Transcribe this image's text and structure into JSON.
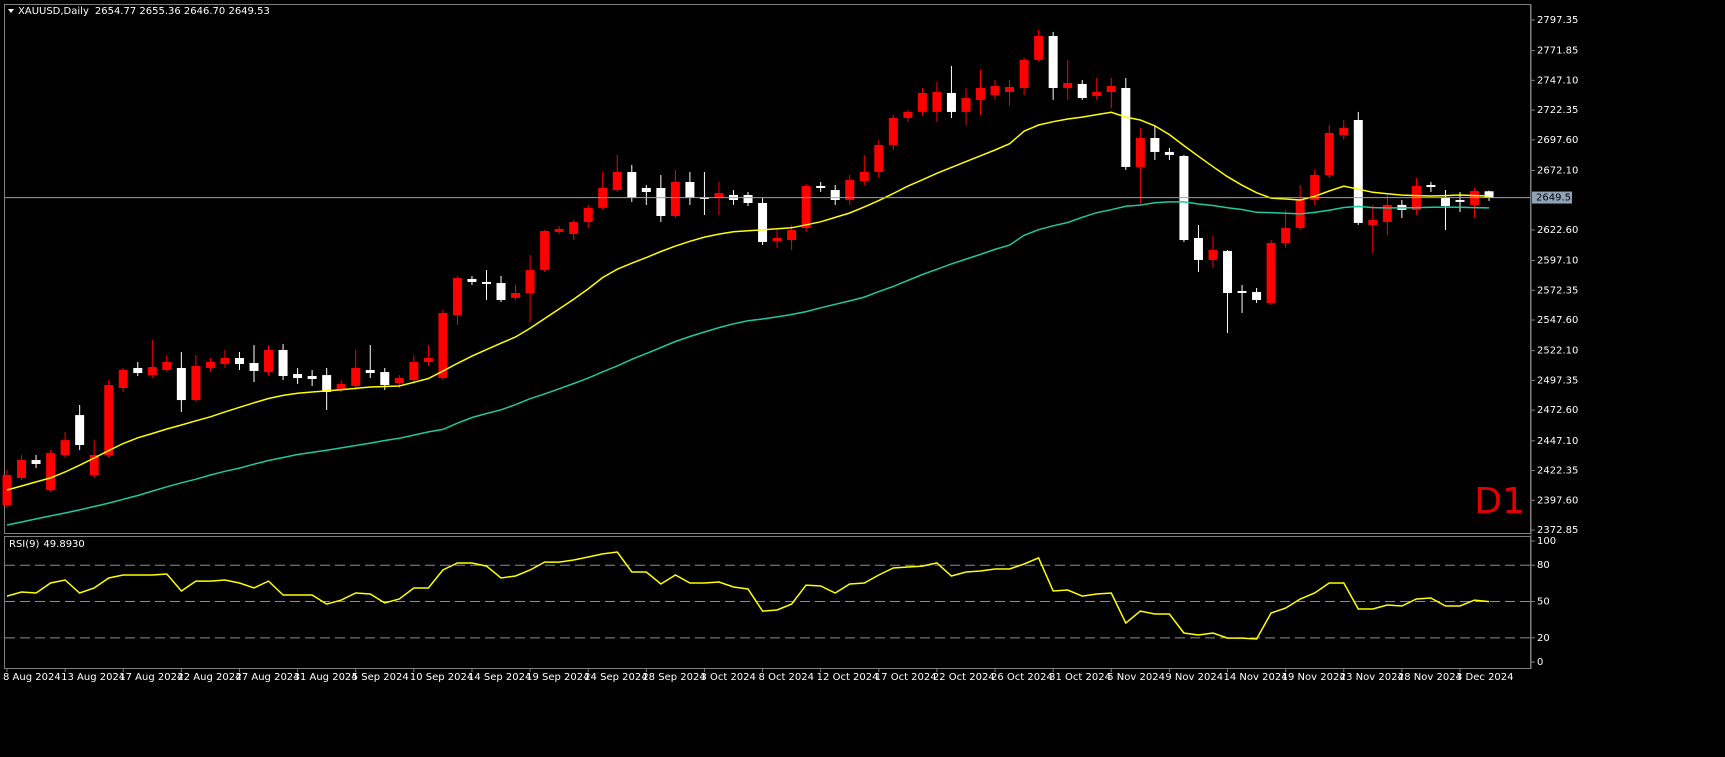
{
  "chart_data": [
    {
      "type": "candlestick",
      "title": "XAUUSD,Daily",
      "ohlc_label": "2654.77 2655.36 2646.70 2649.53",
      "timeframe_badge": "D1",
      "up_color": "#ff0000",
      "down_color": "#ffffff",
      "current_line_color": "#8fa3b5",
      "categories": [
        "8 Aug 2024",
        null,
        null,
        null,
        "13 Aug 2024",
        null,
        null,
        null,
        "17 Aug 2024",
        null,
        null,
        null,
        "22 Aug 2024",
        null,
        null,
        null,
        "27 Aug 2024",
        null,
        null,
        null,
        "31 Aug 2024",
        null,
        null,
        null,
        "5 Sep 2024",
        null,
        null,
        null,
        "10 Sep 2024",
        null,
        null,
        null,
        "14 Sep 2024",
        null,
        null,
        null,
        "19 Sep 2024",
        null,
        null,
        null,
        "24 Sep 2024",
        null,
        null,
        null,
        "28 Sep 2024",
        null,
        null,
        null,
        "3 Oct 2024",
        null,
        null,
        null,
        "8 Oct 2024",
        null,
        null,
        null,
        "12 Oct 2024",
        null,
        null,
        null,
        "17 Oct 2024",
        null,
        null,
        null,
        "22 Oct 2024",
        null,
        null,
        null,
        "26 Oct 2024",
        null,
        null,
        null,
        "31 Oct 2024",
        null,
        null,
        null,
        "5 Nov 2024",
        null,
        null,
        null,
        "9 Nov 2024",
        null,
        null,
        null,
        "14 Nov 2024",
        null,
        null,
        null,
        "19 Nov 2024",
        null,
        null,
        null,
        "23 Nov 2024",
        null,
        null,
        null,
        "28 Nov 2024",
        null,
        null,
        null,
        "3 Dec 2024",
        null,
        null
      ],
      "open": [
        2393.6,
        2416.1,
        2431.1,
        2406.1,
        2435.3,
        2468.5,
        2418.6,
        2435.3,
        2491.0,
        2507.7,
        2501.8,
        2506.0,
        2507.7,
        2481.0,
        2507.7,
        2511.0,
        2516.0,
        2511.8,
        2504.3,
        2522.7,
        2502.7,
        2501.0,
        2501.8,
        2489.4,
        2492.7,
        2506.0,
        2504.3,
        2495.2,
        2497.7,
        2512.7,
        2499.3,
        2551.8,
        2581.8,
        2579.3,
        2578.4,
        2566.0,
        2570.1,
        2589.2,
        2620.9,
        2619.2,
        2629.2,
        2640.9,
        2655.8,
        2670.8,
        2657.5,
        2657.5,
        2634.2,
        2662.5,
        2650.0,
        2649.2,
        2651.7,
        2651.7,
        2645.0,
        2613.4,
        2614.2,
        2624.2,
        2659.2,
        2655.8,
        2647.5,
        2663.3,
        2670.8,
        2693.3,
        2715.8,
        2720.8,
        2720.8,
        2736.6,
        2720.8,
        2730.8,
        2734.9,
        2737.4,
        2740.7,
        2764.1,
        2784.0,
        2740.7,
        2744.1,
        2734.1,
        2737.4,
        2740.7,
        2675.0,
        2699.1,
        2687.5,
        2684.1,
        2615.9,
        2597.6,
        2605.1,
        2571.8,
        2570.9,
        2561.8,
        2611.7,
        2624.2,
        2647.5,
        2668.3,
        2701.6,
        2714.1,
        2626.7,
        2629.2,
        2643.4,
        2639.2,
        2660.0,
        2649.2,
        2647.5,
        2643.4,
        2654.77
      ],
      "high": [
        2422.8,
        2435.3,
        2435.3,
        2439.4,
        2454.4,
        2476.9,
        2447.7,
        2497.7,
        2507.7,
        2512.7,
        2531.0,
        2518.5,
        2521.0,
        2518.5,
        2516.0,
        2522.7,
        2521.0,
        2526.8,
        2526.8,
        2527.7,
        2507.7,
        2506.0,
        2507.7,
        2497.7,
        2522.7,
        2526.8,
        2507.7,
        2501.8,
        2518.5,
        2526.8,
        2556.0,
        2584.3,
        2584.3,
        2589.2,
        2584.3,
        2576.8,
        2601.7,
        2622.5,
        2625.9,
        2630.9,
        2643.4,
        2670.8,
        2685.0,
        2676.7,
        2660.0,
        2668.3,
        2672.5,
        2670.8,
        2670.8,
        2662.5,
        2655.8,
        2654.2,
        2649.2,
        2622.5,
        2626.7,
        2660.8,
        2662.5,
        2660.0,
        2668.3,
        2685.0,
        2697.5,
        2718.3,
        2722.4,
        2740.7,
        2745.7,
        2759.1,
        2740.7,
        2755.7,
        2747.4,
        2747.4,
        2765.7,
        2789.0,
        2787.4,
        2764.1,
        2747.4,
        2749.1,
        2749.1,
        2749.1,
        2707.5,
        2709.9,
        2690.8,
        2685.0,
        2626.7,
        2617.6,
        2605.9,
        2576.8,
        2574.3,
        2614.2,
        2639.2,
        2660.0,
        2672.5,
        2709.9,
        2714.1,
        2720.8,
        2643.4,
        2651.7,
        2647.5,
        2665.8,
        2662.5,
        2655.8,
        2654.2,
        2657.5,
        2655.36
      ],
      "low": [
        2391.1,
        2414.4,
        2424.4,
        2404.5,
        2432.8,
        2439.4,
        2416.1,
        2432.8,
        2487.7,
        2501.0,
        2499.3,
        2504.3,
        2471.0,
        2479.4,
        2504.3,
        2507.7,
        2506.0,
        2496.0,
        2501.8,
        2497.7,
        2494.4,
        2492.7,
        2472.7,
        2487.7,
        2489.4,
        2499.3,
        2489.4,
        2491.0,
        2494.4,
        2509.3,
        2497.7,
        2543.5,
        2576.8,
        2564.3,
        2562.6,
        2564.3,
        2545.9,
        2587.6,
        2619.2,
        2614.2,
        2624.2,
        2639.2,
        2654.2,
        2645.9,
        2643.4,
        2629.2,
        2632.5,
        2643.4,
        2635.0,
        2635.0,
        2643.4,
        2642.5,
        2610.1,
        2607.6,
        2605.9,
        2620.9,
        2654.2,
        2643.4,
        2643.4,
        2660.0,
        2665.8,
        2689.1,
        2712.4,
        2717.4,
        2712.4,
        2715.8,
        2709.9,
        2718.3,
        2730.8,
        2725.8,
        2734.9,
        2762.4,
        2730.8,
        2730.8,
        2730.8,
        2730.8,
        2724.1,
        2672.5,
        2643.4,
        2680.8,
        2680.8,
        2612.6,
        2587.6,
        2590.9,
        2536.8,
        2553.5,
        2561.8,
        2560.1,
        2607.6,
        2622.5,
        2643.4,
        2665.8,
        2697.5,
        2626.7,
        2603.4,
        2618.4,
        2632.5,
        2635.0,
        2654.2,
        2622.5,
        2637.5,
        2632.5,
        2646.7
      ],
      "close": [
        2418.6,
        2431.1,
        2427.8,
        2436.9,
        2447.7,
        2443.6,
        2435.3,
        2493.5,
        2506.0,
        2503.5,
        2508.5,
        2512.7,
        2481.0,
        2509.3,
        2512.7,
        2516.0,
        2511.0,
        2505.2,
        2522.7,
        2501.0,
        2499.3,
        2498.5,
        2487.7,
        2494.4,
        2507.7,
        2503.5,
        2493.5,
        2499.3,
        2512.7,
        2516.0,
        2553.5,
        2582.6,
        2579.3,
        2577.6,
        2564.3,
        2570.1,
        2589.2,
        2621.7,
        2623.4,
        2629.2,
        2640.9,
        2657.5,
        2670.8,
        2649.2,
        2654.2,
        2634.2,
        2662.5,
        2649.2,
        2648.4,
        2653.3,
        2647.5,
        2645.0,
        2612.6,
        2615.9,
        2622.5,
        2659.2,
        2657.5,
        2647.5,
        2664.2,
        2670.8,
        2693.3,
        2715.8,
        2720.8,
        2736.6,
        2737.4,
        2720.8,
        2732.4,
        2740.7,
        2742.4,
        2741.6,
        2764.1,
        2784.0,
        2740.7,
        2744.9,
        2732.4,
        2737.4,
        2742.4,
        2675.0,
        2699.1,
        2687.5,
        2685.0,
        2614.2,
        2597.6,
        2605.9,
        2570.1,
        2570.1,
        2564.3,
        2611.7,
        2624.2,
        2647.5,
        2668.3,
        2703.3,
        2707.5,
        2628.4,
        2630.9,
        2643.4,
        2639.2,
        2659.2,
        2658.3,
        2642.5,
        2645.9,
        2655.0,
        2649.53
      ],
      "series": [
        {
          "color": "#ffff00",
          "values": [
            2406.1,
            2409.5,
            2412.9,
            2416.2,
            2421.1,
            2426.8,
            2432.8,
            2438.9,
            2444.8,
            2449.6,
            2453.2,
            2456.9,
            2460.2,
            2463.7,
            2467.1,
            2471.1,
            2475.0,
            2478.7,
            2482.3,
            2484.9,
            2486.6,
            2487.7,
            2488.6,
            2489.5,
            2490.7,
            2491.9,
            2492.3,
            2492.7,
            2495.8,
            2498.9,
            2505.1,
            2511.5,
            2517.6,
            2523.0,
            2528.3,
            2533.5,
            2540.7,
            2548.8,
            2556.8,
            2564.9,
            2573.5,
            2583.0,
            2589.9,
            2594.9,
            2599.6,
            2604.6,
            2609.1,
            2613.1,
            2616.6,
            2619.1,
            2621.1,
            2621.9,
            2622.6,
            2623.5,
            2624.4,
            2626.9,
            2629.4,
            2633.0,
            2636.7,
            2641.8,
            2647.0,
            2652.9,
            2659.1,
            2664.3,
            2669.7,
            2674.6,
            2679.5,
            2684.3,
            2689.1,
            2694.4,
            2704.8,
            2709.9,
            2712.7,
            2714.9,
            2716.5,
            2718.6,
            2720.5,
            2716.5,
            2714.1,
            2709.2,
            2701.9,
            2692.8,
            2683.9,
            2675.2,
            2666.9,
            2659.8,
            2653.6,
            2649.1,
            2648.3,
            2647.5,
            2650.6,
            2655.0,
            2659.0,
            2656.5,
            2653.9,
            2652.7,
            2651.6,
            2651.2,
            2650.8,
            2651.2,
            2651.7,
            2651.2,
            2650.8
          ]
        },
        {
          "color": "#20c8a0",
          "values": [
            2377.0,
            2379.5,
            2382.1,
            2384.6,
            2387.0,
            2389.6,
            2392.4,
            2395.2,
            2398.4,
            2401.6,
            2405.2,
            2408.8,
            2412.1,
            2415.1,
            2418.6,
            2421.7,
            2424.4,
            2427.6,
            2430.7,
            2433.2,
            2435.7,
            2437.4,
            2439.2,
            2441.2,
            2443.2,
            2445.2,
            2447.3,
            2449.2,
            2451.8,
            2454.5,
            2456.6,
            2461.7,
            2466.5,
            2469.8,
            2472.9,
            2477.1,
            2482.1,
            2486.1,
            2490.4,
            2494.8,
            2499.3,
            2504.5,
            2509.4,
            2514.9,
            2519.7,
            2524.7,
            2529.7,
            2533.9,
            2537.6,
            2541.3,
            2544.5,
            2547.0,
            2548.5,
            2550.2,
            2552.2,
            2554.6,
            2557.8,
            2560.7,
            2563.5,
            2566.7,
            2571.3,
            2575.6,
            2580.6,
            2585.5,
            2589.8,
            2594.3,
            2598.3,
            2602.2,
            2606.4,
            2610.0,
            2618.1,
            2622.8,
            2626.0,
            2628.8,
            2633.1,
            2636.9,
            2639.4,
            2642.3,
            2643.3,
            2645.2,
            2645.9,
            2645.9,
            2644.2,
            2642.9,
            2641.1,
            2639.6,
            2637.3,
            2637.0,
            2636.4,
            2635.9,
            2637.2,
            2639.0,
            2641.3,
            2642.2,
            2641.2,
            2640.9,
            2640.9,
            2641.2,
            2641.5,
            2641.6,
            2641.4,
            2641.2,
            2640.9
          ]
        }
      ],
      "ylim": [
        2370.35,
        2809.8
      ],
      "yticks": [
        2797.35,
        2771.85,
        {
          "value": 2747.1,
          "label": "2747.10"
        },
        2722.35,
        {
          "value": 2697.6,
          "label": "2697.60"
        },
        {
          "value": 2672.1,
          "label": "2672.10"
        },
        {
          "value": 2622.6,
          "label": "2622.60"
        },
        {
          "value": 2597.1,
          "label": "2597.10"
        },
        2572.35,
        {
          "value": 2547.6,
          "label": "2547.60"
        },
        {
          "value": 2522.1,
          "label": "2522.10"
        },
        2497.35,
        {
          "value": 2472.6,
          "label": "2472.60"
        },
        {
          "value": 2447.1,
          "label": "2447.10"
        },
        2422.35,
        {
          "value": 2397.6,
          "label": "2397.60"
        },
        2372.85
      ]
    },
    {
      "type": "line",
      "title": "RSI(9)",
      "last_value_label": "49.8930",
      "color": "#ffff00",
      "values": [
        54.5,
        57.9,
        57.0,
        65.3,
        67.8,
        57.0,
        61.2,
        69.4,
        71.9,
        71.9,
        71.9,
        72.7,
        58.7,
        66.9,
        66.9,
        67.8,
        65.3,
        61.2,
        66.9,
        55.4,
        55.4,
        55.4,
        47.9,
        51.2,
        57.0,
        56.2,
        48.8,
        52.1,
        61.2,
        61.2,
        76.0,
        81.8,
        81.8,
        79.3,
        69.4,
        71.1,
        76.0,
        82.6,
        82.6,
        84.3,
        86.8,
        89.3,
        90.9,
        74.4,
        74.4,
        64.5,
        71.9,
        65.3,
        65.3,
        66.1,
        62.0,
        60.3,
        42.1,
        43.0,
        47.9,
        63.6,
        62.8,
        57.0,
        64.5,
        65.3,
        71.9,
        77.7,
        78.5,
        79.3,
        81.8,
        71.1,
        74.4,
        75.2,
        76.9,
        76.9,
        81.0,
        86.0,
        58.7,
        59.5,
        54.5,
        56.2,
        57.0,
        32.2,
        42.1,
        39.7,
        39.7,
        24.0,
        22.3,
        24.0,
        19.8,
        19.8,
        19.0,
        40.5,
        44.6,
        52.1,
        57.0,
        65.3,
        65.3,
        43.8,
        43.8,
        47.1,
        46.3,
        52.1,
        52.9,
        46.3,
        46.3,
        51.2,
        49.893
      ],
      "levels": [
        80,
        50,
        20
      ],
      "ylim": [
        -4.1,
        103.3
      ],
      "yticks": [
        100,
        80,
        50,
        20,
        0
      ]
    }
  ]
}
